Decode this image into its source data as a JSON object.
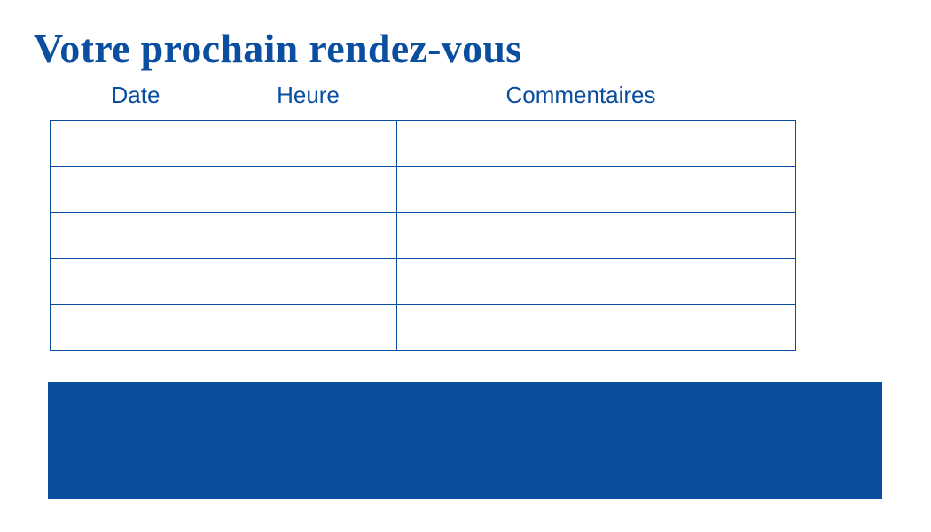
{
  "title": "Votre prochain rendez-vous",
  "table": {
    "columns": [
      "Date",
      "Heure",
      "Commentaires"
    ],
    "rows": [
      [
        "",
        "",
        ""
      ],
      [
        "",
        "",
        ""
      ],
      [
        "",
        "",
        ""
      ],
      [
        "",
        "",
        ""
      ],
      [
        "",
        "",
        ""
      ]
    ]
  },
  "colors": {
    "brand_blue": "#0a4ea0"
  }
}
